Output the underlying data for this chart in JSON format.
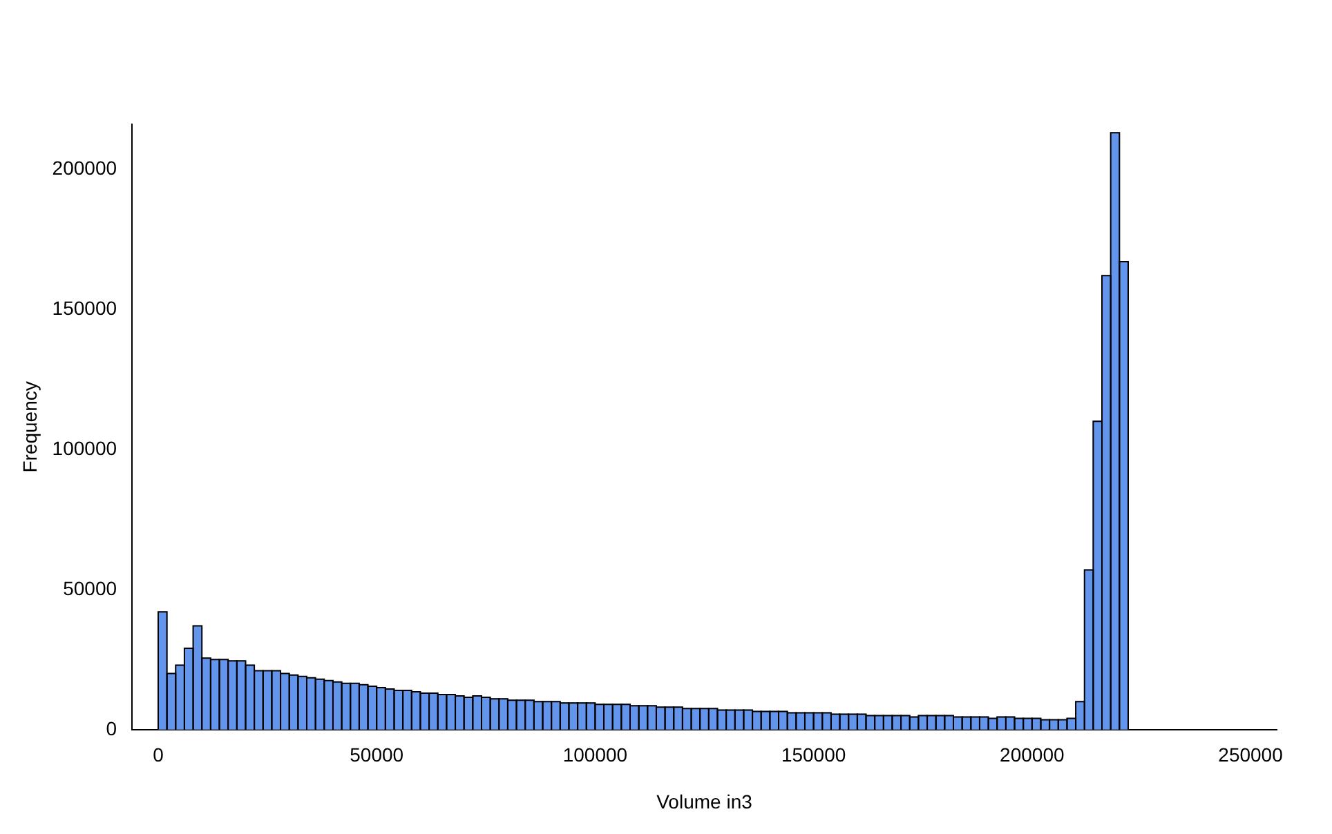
{
  "chart_data": {
    "type": "histogram",
    "xlabel": "Volume in3",
    "ylabel": "Frequency",
    "color": "#6495ed",
    "bins": [
      0,
      2000,
      4000,
      6000,
      8000,
      10000,
      12000,
      14000,
      16000,
      18000,
      20000,
      22000,
      24000,
      26000,
      28000,
      30000,
      32000,
      34000,
      36000,
      38000,
      40000,
      42000,
      44000,
      46000,
      48000,
      50000,
      52000,
      54000,
      56000,
      58000,
      60000,
      62000,
      64000,
      66000,
      68000,
      70000,
      72000,
      74000,
      76000,
      78000,
      80000,
      82000,
      84000,
      86000,
      88000,
      90000,
      92000,
      94000,
      96000,
      98000,
      100000,
      102000,
      104000,
      106000,
      108000,
      110000,
      112000,
      114000,
      116000,
      118000,
      120000,
      122000,
      124000,
      126000,
      128000,
      130000,
      132000,
      134000,
      136000,
      138000,
      140000,
      142000,
      144000,
      146000,
      148000,
      150000,
      152000,
      154000,
      156000,
      158000,
      160000,
      162000,
      164000,
      166000,
      168000,
      170000,
      172000,
      174000,
      176000,
      178000,
      180000,
      182000,
      184000,
      186000,
      188000,
      190000,
      192000,
      194000,
      196000,
      198000,
      200000,
      202000,
      204000,
      206000,
      208000,
      210000,
      212000,
      214000,
      216000,
      218000,
      220000,
      222000
    ],
    "values": [
      42000,
      20000,
      23000,
      29000,
      37000,
      25500,
      25000,
      25000,
      24500,
      24500,
      23000,
      21000,
      21000,
      21000,
      20000,
      19500,
      19000,
      18500,
      18000,
      17500,
      17000,
      16500,
      16500,
      16000,
      15500,
      15000,
      14500,
      14000,
      14000,
      13500,
      13000,
      13000,
      12500,
      12500,
      12000,
      11500,
      12000,
      11500,
      11000,
      11000,
      10500,
      10500,
      10500,
      10000,
      10000,
      10000,
      9500,
      9500,
      9500,
      9500,
      9000,
      9000,
      9000,
      9000,
      8500,
      8500,
      8500,
      8000,
      8000,
      8000,
      7500,
      7500,
      7500,
      7500,
      7000,
      7000,
      7000,
      7000,
      6500,
      6500,
      6500,
      6500,
      6000,
      6000,
      6000,
      6000,
      6000,
      5500,
      5500,
      5500,
      5500,
      5000,
      5000,
      5000,
      5000,
      5000,
      4500,
      5000,
      5000,
      5000,
      5000,
      4500,
      4500,
      4500,
      4500,
      4000,
      4500,
      4500,
      4000,
      4000,
      4000,
      3500,
      3500,
      3500,
      4000,
      10000,
      57000,
      110000,
      162000,
      213000,
      167000
    ],
    "xlim": [
      -6000,
      256000
    ],
    "xticks": [
      0,
      50000,
      100000,
      150000,
      200000,
      250000
    ],
    "ylim": [
      0,
      216000
    ],
    "yticks": [
      0,
      50000,
      100000,
      150000,
      200000
    ],
    "grid": false,
    "legend": false
  }
}
